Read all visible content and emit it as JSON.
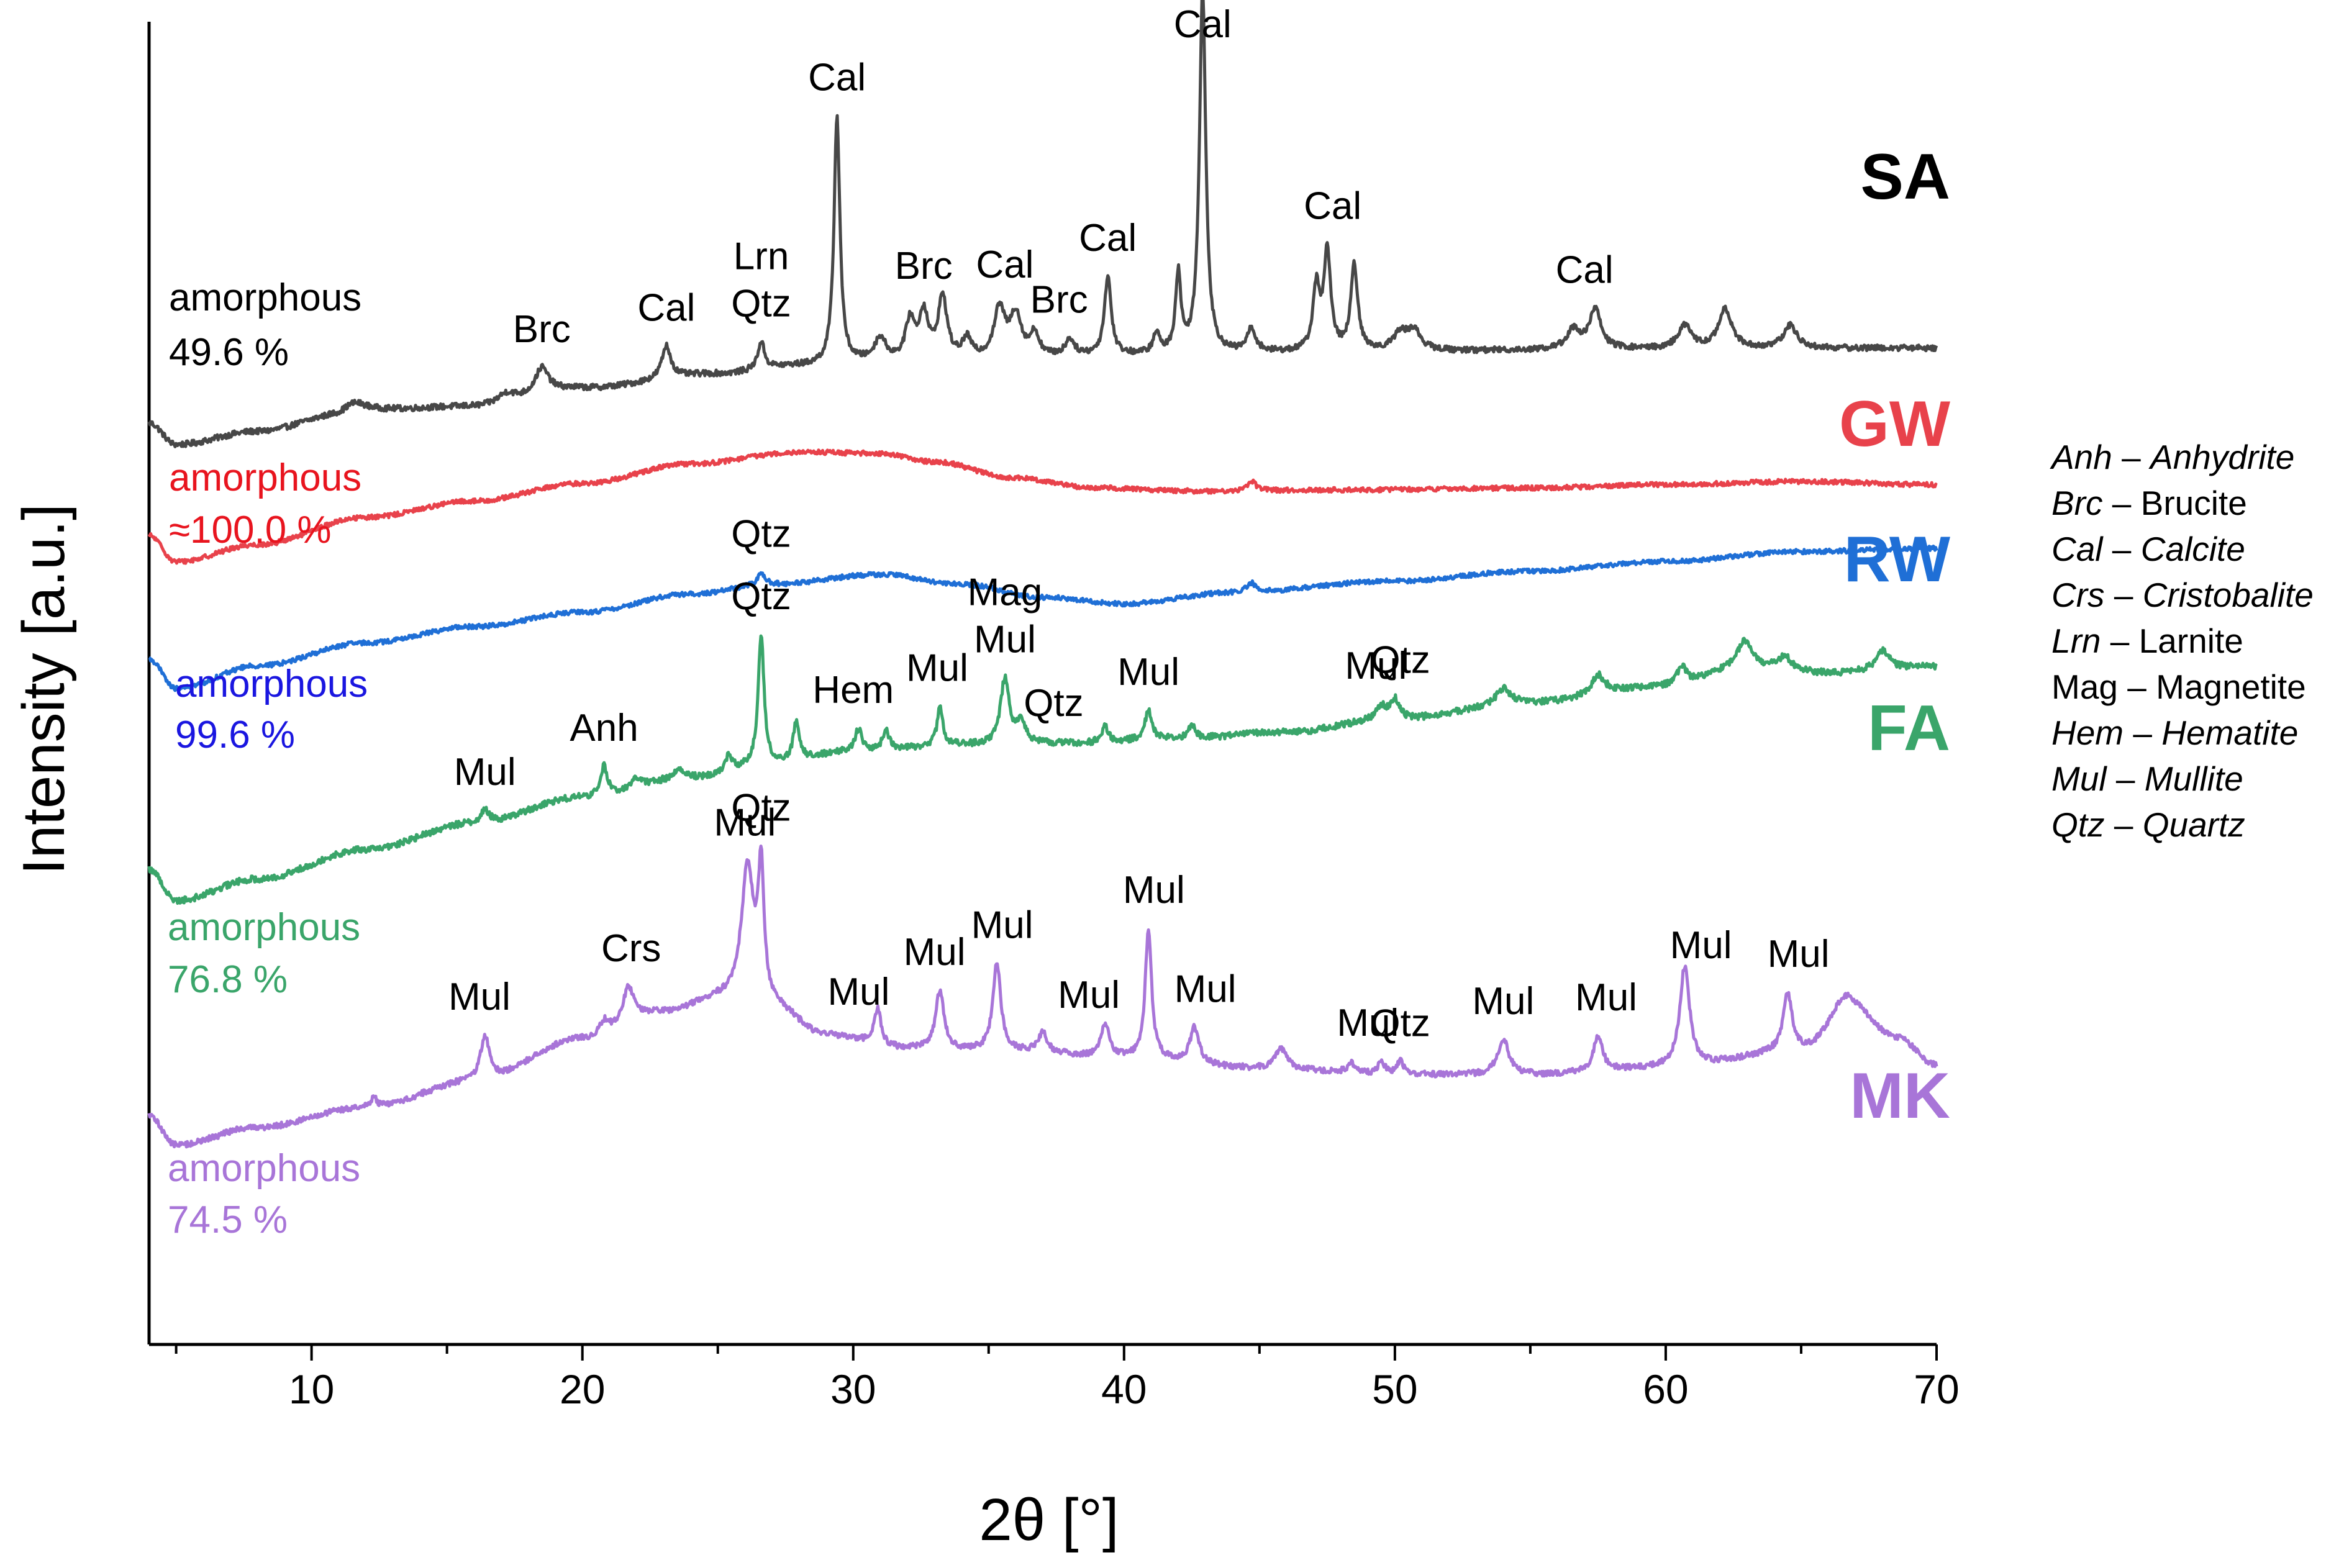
{
  "chart_data": {
    "type": "line",
    "title": "",
    "xlabel": "2θ [°]",
    "ylabel": "Intensity [a.u.]",
    "xlim": [
      4,
      70
    ],
    "xticks": [
      10,
      20,
      30,
      40,
      50,
      60,
      70
    ],
    "yticks": [],
    "grid": false,
    "legend_position": "right",
    "series": [
      {
        "id": "SA",
        "name": "SA",
        "color": "#474747",
        "amorphous_label": "amorphous",
        "amorphous_value": "49.6 %",
        "baseline": [
          [
            4,
            -0.25
          ],
          [
            5,
            -0.58
          ],
          [
            8,
            -0.38
          ],
          [
            11,
            -0.15
          ],
          [
            12,
            -0.05
          ],
          [
            16,
            0.0
          ],
          [
            20,
            0.28
          ],
          [
            25,
            0.5
          ],
          [
            28,
            0.62
          ],
          [
            31,
            0.68
          ],
          [
            34,
            0.7
          ],
          [
            40,
            0.78
          ],
          [
            50,
            0.85
          ],
          [
            60,
            0.88
          ],
          [
            70,
            0.9
          ]
        ],
        "peaks": [
          {
            "x": 11.5,
            "h": 0.15,
            "w": 0.5
          },
          {
            "x": 17.2,
            "h": 0.15,
            "w": 0.4
          },
          {
            "x": 18.5,
            "h": 0.4,
            "w": 0.3
          },
          {
            "x": 23.1,
            "h": 0.5,
            "w": 0.2
          },
          {
            "x": 26.6,
            "h": 0.42,
            "w": 0.15
          },
          {
            "x": 29.4,
            "h": 3.8,
            "w": 0.13
          },
          {
            "x": 31.0,
            "h": 0.35,
            "w": 0.25
          },
          {
            "x": 32.1,
            "h": 0.6,
            "w": 0.2
          },
          {
            "x": 32.6,
            "h": 0.7,
            "w": 0.2
          },
          {
            "x": 33.3,
            "h": 0.95,
            "w": 0.2
          },
          {
            "x": 34.2,
            "h": 0.3,
            "w": 0.2
          },
          {
            "x": 35.4,
            "h": 0.75,
            "w": 0.25
          },
          {
            "x": 36.0,
            "h": 0.65,
            "w": 0.25
          },
          {
            "x": 36.7,
            "h": 0.35,
            "w": 0.2
          },
          {
            "x": 38.0,
            "h": 0.25,
            "w": 0.2
          },
          {
            "x": 39.4,
            "h": 1.2,
            "w": 0.15
          },
          {
            "x": 41.2,
            "h": 0.3,
            "w": 0.15
          },
          {
            "x": 42.0,
            "h": 1.2,
            "w": 0.12
          },
          {
            "x": 42.9,
            "h": 5.6,
            "w": 0.14
          },
          {
            "x": 44.7,
            "h": 0.35,
            "w": 0.2
          },
          {
            "x": 47.1,
            "h": 0.95,
            "w": 0.15
          },
          {
            "x": 47.5,
            "h": 1.5,
            "w": 0.15
          },
          {
            "x": 48.5,
            "h": 1.3,
            "w": 0.15
          },
          {
            "x": 50.2,
            "h": 0.25,
            "w": 0.3
          },
          {
            "x": 50.7,
            "h": 0.3,
            "w": 0.3
          },
          {
            "x": 56.6,
            "h": 0.3,
            "w": 0.3
          },
          {
            "x": 57.4,
            "h": 0.6,
            "w": 0.25
          },
          {
            "x": 60.7,
            "h": 0.35,
            "w": 0.3
          },
          {
            "x": 62.2,
            "h": 0.6,
            "w": 0.3
          },
          {
            "x": 64.6,
            "h": 0.35,
            "w": 0.3
          }
        ],
        "noise": 0.045
      },
      {
        "id": "GW",
        "name": "GW",
        "color": "#e8424b",
        "amorphous_label": "amorphous",
        "amorphous_value": "≈100.0 %",
        "baseline": [
          [
            4,
            -0.28
          ],
          [
            5,
            -0.68
          ],
          [
            8,
            -0.42
          ],
          [
            12,
            0.0
          ],
          [
            16,
            0.25
          ],
          [
            20,
            0.52
          ],
          [
            24,
            0.82
          ],
          [
            28,
            1.0
          ],
          [
            31,
            0.98
          ],
          [
            33,
            0.85
          ],
          [
            36,
            0.6
          ],
          [
            39,
            0.45
          ],
          [
            43,
            0.4
          ],
          [
            48,
            0.42
          ],
          [
            55,
            0.45
          ],
          [
            60,
            0.5
          ],
          [
            65,
            0.55
          ],
          [
            70,
            0.5
          ]
        ],
        "peaks": [
          {
            "x": 44.7,
            "h": 0.15,
            "w": 0.2
          }
        ],
        "noise": 0.035
      },
      {
        "id": "RW",
        "name": "RW",
        "color": "#1f6fd6",
        "amorphous_label": "amorphous",
        "amorphous_value": "99.6 %",
        "baseline": [
          [
            4,
            -0.3
          ],
          [
            5,
            -0.75
          ],
          [
            8,
            -0.4
          ],
          [
            12,
            -0.05
          ],
          [
            16,
            0.2
          ],
          [
            20,
            0.42
          ],
          [
            24,
            0.7
          ],
          [
            27,
            0.85
          ],
          [
            31,
            1.0
          ],
          [
            34,
            0.85
          ],
          [
            37,
            0.65
          ],
          [
            40,
            0.55
          ],
          [
            44,
            0.72
          ],
          [
            50,
            0.9
          ],
          [
            55,
            1.05
          ],
          [
            60,
            1.2
          ],
          [
            65,
            1.35
          ],
          [
            70,
            1.4
          ]
        ],
        "peaks": [
          {
            "x": 26.6,
            "h": 0.2,
            "w": 0.15
          },
          {
            "x": 44.7,
            "h": 0.15,
            "w": 0.2
          }
        ],
        "noise": 0.035
      },
      {
        "id": "FA",
        "name": "FA",
        "color": "#3aa56a",
        "amorphous_label": "amorphous",
        "amorphous_value": "76.8 %",
        "baseline": [
          [
            4,
            -0.3
          ],
          [
            5,
            -0.78
          ],
          [
            8,
            -0.45
          ],
          [
            12,
            0.0
          ],
          [
            16,
            0.4
          ],
          [
            20,
            0.8
          ],
          [
            24,
            1.1
          ],
          [
            27,
            1.3
          ],
          [
            30,
            1.5
          ],
          [
            34,
            1.6
          ],
          [
            38,
            1.62
          ],
          [
            42,
            1.7
          ],
          [
            46,
            1.8
          ],
          [
            50,
            2.0
          ],
          [
            55,
            2.25
          ],
          [
            60,
            2.5
          ],
          [
            63,
            2.8
          ],
          [
            66,
            2.7
          ],
          [
            70,
            2.8
          ]
        ],
        "peaks": [
          {
            "x": 16.4,
            "h": 0.2,
            "w": 0.2
          },
          {
            "x": 20.8,
            "h": 0.45,
            "w": 0.15
          },
          {
            "x": 22.0,
            "h": 0.15,
            "w": 0.2
          },
          {
            "x": 23.6,
            "h": 0.15,
            "w": 0.2
          },
          {
            "x": 25.4,
            "h": 0.25,
            "w": 0.15
          },
          {
            "x": 26.6,
            "h": 2.0,
            "w": 0.13
          },
          {
            "x": 27.9,
            "h": 0.6,
            "w": 0.15
          },
          {
            "x": 30.2,
            "h": 0.35,
            "w": 0.15
          },
          {
            "x": 31.2,
            "h": 0.3,
            "w": 0.15
          },
          {
            "x": 33.2,
            "h": 0.6,
            "w": 0.12
          },
          {
            "x": 35.6,
            "h": 1.0,
            "w": 0.2
          },
          {
            "x": 36.2,
            "h": 0.3,
            "w": 0.2
          },
          {
            "x": 39.3,
            "h": 0.25,
            "w": 0.15
          },
          {
            "x": 40.9,
            "h": 0.45,
            "w": 0.15
          },
          {
            "x": 42.5,
            "h": 0.2,
            "w": 0.15
          },
          {
            "x": 49.5,
            "h": 0.2,
            "w": 0.2
          },
          {
            "x": 50.0,
            "h": 0.3,
            "w": 0.2
          },
          {
            "x": 54.0,
            "h": 0.25,
            "w": 0.3
          },
          {
            "x": 57.5,
            "h": 0.3,
            "w": 0.3
          },
          {
            "x": 60.6,
            "h": 0.3,
            "w": 0.2
          },
          {
            "x": 62.9,
            "h": 0.4,
            "w": 0.3
          },
          {
            "x": 64.4,
            "h": 0.2,
            "w": 0.3
          },
          {
            "x": 68.0,
            "h": 0.3,
            "w": 0.3
          }
        ],
        "noise": 0.05
      },
      {
        "id": "MK",
        "name": "MK",
        "color": "#a875d8",
        "amorphous_label": "amorphous",
        "amorphous_value": "74.5 %",
        "baseline": [
          [
            4,
            -0.28
          ],
          [
            5,
            -0.72
          ],
          [
            8,
            -0.45
          ],
          [
            12,
            -0.15
          ],
          [
            16,
            0.25
          ],
          [
            20,
            0.9
          ],
          [
            23,
            1.3
          ],
          [
            25,
            1.5
          ],
          [
            27,
            1.35
          ],
          [
            29,
            0.95
          ],
          [
            32,
            0.75
          ],
          [
            36,
            0.7
          ],
          [
            40,
            0.6
          ],
          [
            45,
            0.45
          ],
          [
            50,
            0.35
          ],
          [
            55,
            0.35
          ],
          [
            60,
            0.45
          ],
          [
            65,
            0.7
          ],
          [
            67,
            1.2
          ],
          [
            68.5,
            0.9
          ],
          [
            70,
            0.5
          ]
        ],
        "peaks": [
          {
            "x": 12.3,
            "h": 0.15,
            "w": 0.15
          },
          {
            "x": 16.4,
            "h": 0.7,
            "w": 0.2
          },
          {
            "x": 20.8,
            "h": 0.2,
            "w": 0.2
          },
          {
            "x": 21.7,
            "h": 0.55,
            "w": 0.25
          },
          {
            "x": 26.1,
            "h": 2.1,
            "w": 0.28
          },
          {
            "x": 26.6,
            "h": 2.0,
            "w": 0.13
          },
          {
            "x": 30.9,
            "h": 0.55,
            "w": 0.15
          },
          {
            "x": 33.2,
            "h": 0.9,
            "w": 0.18
          },
          {
            "x": 35.3,
            "h": 1.35,
            "w": 0.18
          },
          {
            "x": 37.0,
            "h": 0.3,
            "w": 0.2
          },
          {
            "x": 39.3,
            "h": 0.5,
            "w": 0.2
          },
          {
            "x": 40.9,
            "h": 2.0,
            "w": 0.14
          },
          {
            "x": 42.6,
            "h": 0.55,
            "w": 0.2
          },
          {
            "x": 45.8,
            "h": 0.3,
            "w": 0.25
          },
          {
            "x": 48.4,
            "h": 0.15,
            "w": 0.2
          },
          {
            "x": 49.5,
            "h": 0.2,
            "w": 0.15
          },
          {
            "x": 50.2,
            "h": 0.2,
            "w": 0.15
          },
          {
            "x": 54.0,
            "h": 0.55,
            "w": 0.25
          },
          {
            "x": 57.5,
            "h": 0.55,
            "w": 0.2
          },
          {
            "x": 60.7,
            "h": 1.55,
            "w": 0.22
          },
          {
            "x": 64.5,
            "h": 0.9,
            "w": 0.2
          },
          {
            "x": 66.6,
            "h": 0.4,
            "w": 0.6
          }
        ],
        "noise": 0.045
      }
    ],
    "peak_annotations": [
      {
        "series": "SA",
        "x": 18.5,
        "lines": [
          "Brc"
        ]
      },
      {
        "series": "SA",
        "x": 23.1,
        "lines": [
          "Cal"
        ]
      },
      {
        "series": "SA",
        "x": 26.6,
        "lines": [
          "Lrn",
          "Qtz"
        ]
      },
      {
        "series": "SA",
        "x": 29.4,
        "lines": [
          "Cal"
        ]
      },
      {
        "series": "SA",
        "x": 32.6,
        "lines": [
          "Brc"
        ]
      },
      {
        "series": "SA",
        "x": 35.6,
        "lines": [
          "Cal"
        ]
      },
      {
        "series": "SA",
        "x": 37.6,
        "lines": [
          "Brc"
        ]
      },
      {
        "series": "SA",
        "x": 39.4,
        "lines": [
          "Cal"
        ]
      },
      {
        "series": "SA",
        "x": 42.9,
        "lines": [
          "Cal"
        ]
      },
      {
        "series": "SA",
        "x": 47.7,
        "lines": [
          "Cal"
        ]
      },
      {
        "series": "SA",
        "x": 57.0,
        "lines": [
          "Cal"
        ]
      },
      {
        "series": "RW",
        "x": 26.6,
        "lines": [
          "Qtz"
        ]
      },
      {
        "series": "FA",
        "x": 16.4,
        "lines": [
          "Mul"
        ]
      },
      {
        "series": "FA",
        "x": 20.8,
        "lines": [
          "Anh"
        ]
      },
      {
        "series": "FA",
        "x": 26.6,
        "lines": [
          "Qtz"
        ]
      },
      {
        "series": "FA",
        "x": 30.0,
        "lines": [
          "Hem"
        ]
      },
      {
        "series": "FA",
        "x": 33.1,
        "lines": [
          "Mul"
        ]
      },
      {
        "series": "FA",
        "x": 35.6,
        "lines": [
          "Mag",
          "Mul"
        ]
      },
      {
        "series": "FA",
        "x": 37.4,
        "lines": [
          "Qtz"
        ]
      },
      {
        "series": "FA",
        "x": 40.9,
        "lines": [
          "Mul"
        ]
      },
      {
        "series": "FA",
        "x": 49.3,
        "lines": [
          "Mul"
        ]
      },
      {
        "series": "FA",
        "x": 50.2,
        "lines": [
          "Qtz"
        ]
      },
      {
        "series": "MK",
        "x": 16.2,
        "lines": [
          "Mul"
        ]
      },
      {
        "series": "MK",
        "x": 21.8,
        "lines": [
          "Crs"
        ]
      },
      {
        "series": "MK",
        "x": 26.0,
        "lines": [
          "Mul"
        ]
      },
      {
        "series": "MK",
        "x": 26.6,
        "lines": [
          "Qtz"
        ]
      },
      {
        "series": "MK",
        "x": 30.2,
        "lines": [
          "Mul"
        ]
      },
      {
        "series": "MK",
        "x": 33.0,
        "lines": [
          "Mul"
        ]
      },
      {
        "series": "MK",
        "x": 35.5,
        "lines": [
          "Mul"
        ]
      },
      {
        "series": "MK",
        "x": 38.7,
        "lines": [
          "Mul"
        ]
      },
      {
        "series": "MK",
        "x": 41.1,
        "lines": [
          "Mul"
        ]
      },
      {
        "series": "MK",
        "x": 43.0,
        "lines": [
          "Mul"
        ]
      },
      {
        "series": "MK",
        "x": 49.0,
        "lines": [
          "Mul"
        ]
      },
      {
        "series": "MK",
        "x": 50.2,
        "lines": [
          "Qtz"
        ]
      },
      {
        "series": "MK",
        "x": 54.0,
        "lines": [
          "Mul"
        ]
      },
      {
        "series": "MK",
        "x": 57.8,
        "lines": [
          "Mul"
        ]
      },
      {
        "series": "MK",
        "x": 61.3,
        "lines": [
          "Mul"
        ]
      },
      {
        "series": "MK",
        "x": 64.9,
        "lines": [
          "Mul"
        ]
      }
    ],
    "legend": [
      {
        "abbr": "Anh",
        "sep": " – ",
        "name": "Anhydrite",
        "abbr_italic": true,
        "name_italic": true
      },
      {
        "abbr": "Brc",
        "sep": " – ",
        "name": "Brucite",
        "abbr_italic": true,
        "name_italic": false
      },
      {
        "abbr": "Cal",
        "sep": " – ",
        "name": "Calcite",
        "abbr_italic": true,
        "name_italic": true
      },
      {
        "abbr": "Crs",
        "sep": " – ",
        "name": "Cristobalite",
        "abbr_italic": true,
        "name_italic": true
      },
      {
        "abbr": "Lrn",
        "sep": " –  ",
        "name": "Larnite",
        "abbr_italic": true,
        "name_italic": false
      },
      {
        "abbr": "Mag",
        "sep": " – ",
        "name": "Magnetite",
        "abbr_italic": false,
        "name_italic": false
      },
      {
        "abbr": "Hem",
        "sep": " – ",
        "name": "Hematite",
        "abbr_italic": true,
        "name_italic": true
      },
      {
        "abbr": "Mul",
        "sep": " – ",
        "name": "Mullite",
        "abbr_italic": true,
        "name_italic": true
      },
      {
        "abbr": "Qtz",
        "sep": " – ",
        "name": "Quartz",
        "abbr_italic": true,
        "name_italic": true
      }
    ]
  }
}
